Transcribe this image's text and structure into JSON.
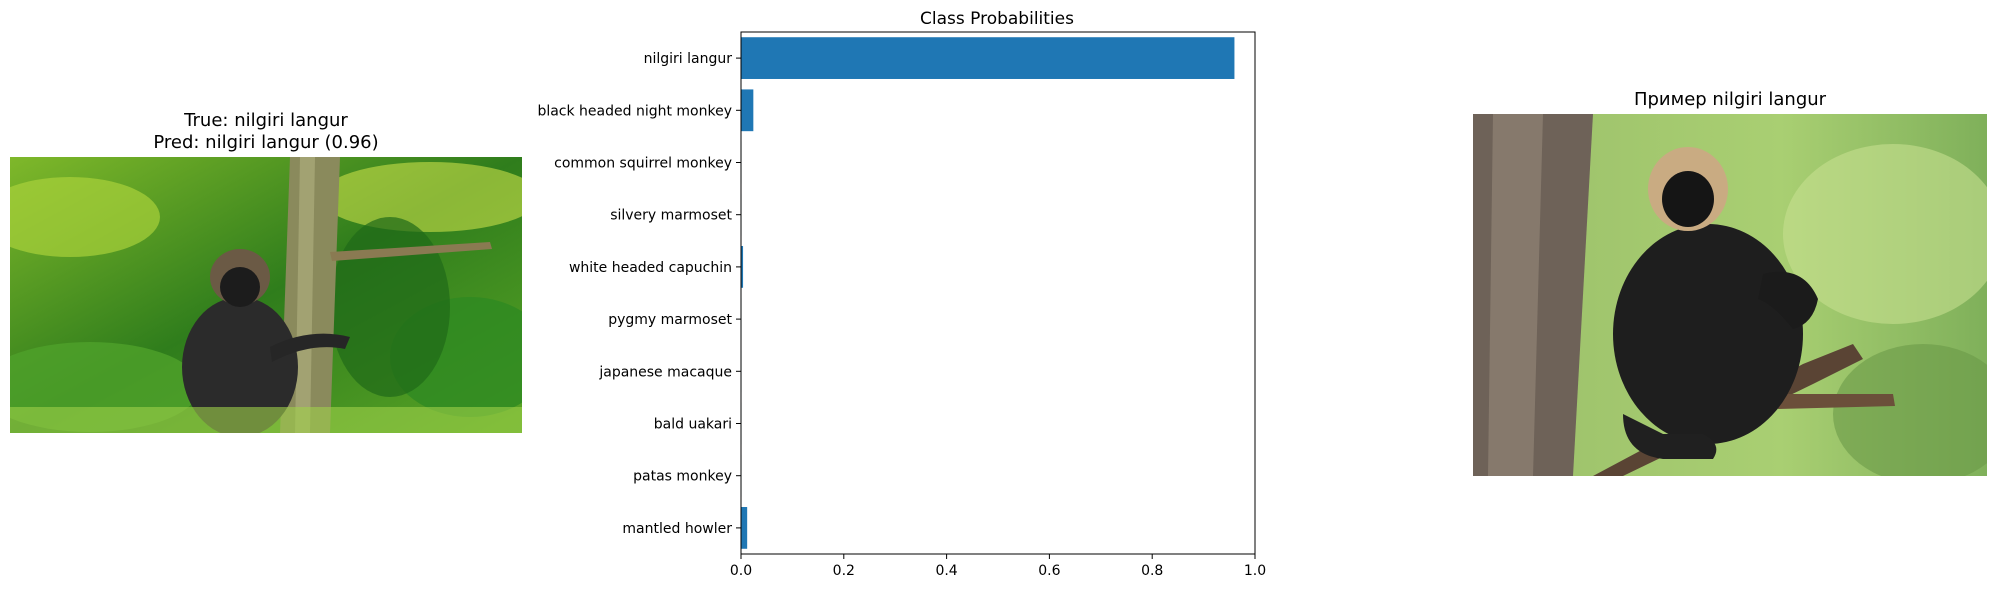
{
  "left_panel": {
    "title_line1": "True: nilgiri langur",
    "title_line2": "Pred: nilgiri langur (0.96)"
  },
  "right_panel": {
    "title": "Пример nilgiri langur"
  },
  "chart_data": {
    "type": "bar",
    "orientation": "horizontal",
    "title": "Class Probabilities",
    "xlabel": "",
    "ylabel": "",
    "categories": [
      "nilgiri langur",
      "black headed night monkey",
      "common squirrel monkey",
      "silvery marmoset",
      "white headed capuchin",
      "pygmy marmoset",
      "japanese macaque",
      "bald uakari",
      "patas monkey",
      "mantled howler"
    ],
    "values": [
      0.96,
      0.024,
      0.001,
      0.001,
      0.004,
      0.001,
      0.001,
      0.001,
      0.001,
      0.012
    ],
    "xlim": [
      0,
      1.0
    ],
    "xticks": [
      "0.0",
      "0.2",
      "0.4",
      "0.6",
      "0.8",
      "1.0"
    ],
    "grid": false,
    "bar_color": "#1f77b4"
  }
}
